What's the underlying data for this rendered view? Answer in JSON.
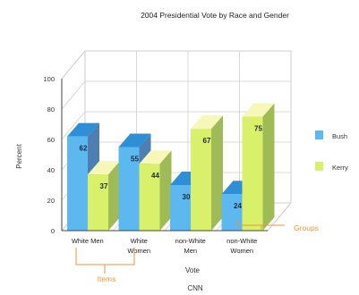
{
  "chart_data": {
    "type": "bar",
    "title": "2004 Presidential Vote by Race and Gender",
    "xlabel": "Vote",
    "ylabel": "Percent",
    "source_caption": "CNN",
    "categories": [
      {
        "line1": "White Men",
        "line2": ""
      },
      {
        "line1": "White",
        "line2": "Women"
      },
      {
        "line1": "non-White",
        "line2": "Men"
      },
      {
        "line1": "non-White",
        "line2": "Women"
      }
    ],
    "series": [
      {
        "name": "Bush",
        "values": [
          62,
          55,
          30,
          24
        ]
      },
      {
        "name": "Kerry",
        "values": [
          37,
          44,
          67,
          75
        ]
      }
    ],
    "ylim": [
      0,
      100
    ],
    "yticks": [
      0,
      20,
      40,
      60,
      80,
      100
    ],
    "grid": true,
    "legend_position": "right",
    "annotations": {
      "items": "Items",
      "groups": "Groups"
    },
    "colors": {
      "bush_front": "#5db8f0",
      "bush_top": "#2f8fd6",
      "bush_side": "#4f7fb0",
      "kerry_front": "#d8f06a",
      "kerry_top": "#f6f7b8",
      "kerry_side": "#9ebb55",
      "annotation": "#e8963a",
      "grid": "#cfcfcf",
      "axis": "#444444"
    }
  }
}
